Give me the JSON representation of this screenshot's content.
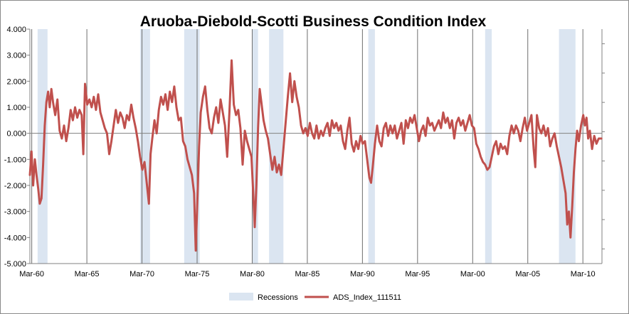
{
  "chart_data": {
    "type": "line",
    "title": "Aruoba-Diebold-Scotti Business Condition Index",
    "xlabel": "",
    "ylabel": "",
    "x_range": [
      1960.0,
      2011.9
    ],
    "ylim": [
      -5,
      4
    ],
    "y_ticks": [
      "4.000",
      "3.000",
      "2.000",
      "1.000",
      "0.000",
      "-1.000",
      "-2.000",
      "-3.000",
      "-4.000",
      "-5.000"
    ],
    "x_ticks": [
      {
        "label": "Mar-60",
        "x": 1960.17
      },
      {
        "label": "Mar-65",
        "x": 1965.17
      },
      {
        "label": "Mar-70",
        "x": 1970.17
      },
      {
        "label": "Mar-75",
        "x": 1975.17
      },
      {
        "label": "Mar-80",
        "x": 1980.17
      },
      {
        "label": "Mar-85",
        "x": 1985.17
      },
      {
        "label": "Mar-90",
        "x": 1990.17
      },
      {
        "label": "Mar-95",
        "x": 1995.17
      },
      {
        "label": "Mar-00",
        "x": 2000.17
      },
      {
        "label": "Mar-05",
        "x": 2005.17
      },
      {
        "label": "Mar-10",
        "x": 2010.17
      }
    ],
    "grid": "vertical",
    "legend_position": "bottom",
    "recession_color": "#dbe5f1",
    "line_color": "#c0504d",
    "series": [
      {
        "name": "Recessions",
        "type": "band",
        "periods": [
          [
            1960.7,
            1961.6
          ],
          [
            1970.0,
            1970.9
          ],
          [
            1974.0,
            1975.4
          ],
          [
            1980.2,
            1980.7
          ],
          [
            1981.7,
            1983.0
          ],
          [
            1990.7,
            1991.3
          ],
          [
            2001.3,
            2001.9
          ],
          [
            2008.0,
            2009.5
          ]
        ]
      },
      {
        "name": "ADS_Index_111511",
        "type": "line",
        "points": [
          [
            1960.0,
            -1.6
          ],
          [
            1960.15,
            -0.7
          ],
          [
            1960.3,
            -2.0
          ],
          [
            1960.45,
            -1.0
          ],
          [
            1960.6,
            -1.6
          ],
          [
            1960.75,
            -2.1
          ],
          [
            1960.9,
            -2.7
          ],
          [
            1961.05,
            -2.5
          ],
          [
            1961.2,
            -1.2
          ],
          [
            1961.35,
            0.3
          ],
          [
            1961.5,
            1.2
          ],
          [
            1961.65,
            1.6
          ],
          [
            1961.8,
            1.0
          ],
          [
            1961.95,
            1.7
          ],
          [
            1962.1,
            1.2
          ],
          [
            1962.3,
            0.7
          ],
          [
            1962.5,
            1.3
          ],
          [
            1962.7,
            0.1
          ],
          [
            1962.9,
            -0.2
          ],
          [
            1963.1,
            0.3
          ],
          [
            1963.3,
            -0.3
          ],
          [
            1963.5,
            0.2
          ],
          [
            1963.7,
            0.9
          ],
          [
            1963.9,
            0.5
          ],
          [
            1964.1,
            1.0
          ],
          [
            1964.3,
            0.6
          ],
          [
            1964.5,
            0.9
          ],
          [
            1964.7,
            0.7
          ],
          [
            1964.85,
            -0.8
          ],
          [
            1965.0,
            1.9
          ],
          [
            1965.2,
            1.1
          ],
          [
            1965.4,
            1.3
          ],
          [
            1965.6,
            1.0
          ],
          [
            1965.8,
            1.4
          ],
          [
            1966.0,
            0.9
          ],
          [
            1966.2,
            1.5
          ],
          [
            1966.4,
            0.8
          ],
          [
            1966.6,
            0.5
          ],
          [
            1966.8,
            0.2
          ],
          [
            1967.0,
            0.0
          ],
          [
            1967.2,
            -0.8
          ],
          [
            1967.4,
            -0.3
          ],
          [
            1967.6,
            0.3
          ],
          [
            1967.8,
            0.9
          ],
          [
            1968.0,
            0.4
          ],
          [
            1968.2,
            0.8
          ],
          [
            1968.4,
            0.6
          ],
          [
            1968.6,
            0.2
          ],
          [
            1968.8,
            0.7
          ],
          [
            1969.0,
            0.5
          ],
          [
            1969.2,
            1.1
          ],
          [
            1969.4,
            0.6
          ],
          [
            1969.6,
            0.2
          ],
          [
            1969.8,
            -0.3
          ],
          [
            1970.0,
            -0.9
          ],
          [
            1970.2,
            -1.4
          ],
          [
            1970.4,
            -1.1
          ],
          [
            1970.6,
            -1.9
          ],
          [
            1970.8,
            -2.7
          ],
          [
            1970.95,
            -0.8
          ],
          [
            1971.1,
            -0.2
          ],
          [
            1971.3,
            0.5
          ],
          [
            1971.5,
            0.0
          ],
          [
            1971.7,
            0.9
          ],
          [
            1971.9,
            1.4
          ],
          [
            1972.1,
            1.1
          ],
          [
            1972.3,
            1.5
          ],
          [
            1972.5,
            0.9
          ],
          [
            1972.7,
            1.6
          ],
          [
            1972.9,
            1.2
          ],
          [
            1973.1,
            1.8
          ],
          [
            1973.3,
            1.0
          ],
          [
            1973.5,
            0.5
          ],
          [
            1973.7,
            0.6
          ],
          [
            1973.9,
            -0.3
          ],
          [
            1974.1,
            -0.5
          ],
          [
            1974.3,
            -1.0
          ],
          [
            1974.5,
            -1.3
          ],
          [
            1974.7,
            -1.6
          ],
          [
            1974.9,
            -2.3
          ],
          [
            1975.05,
            -4.5
          ],
          [
            1975.2,
            -2.5
          ],
          [
            1975.35,
            -0.5
          ],
          [
            1975.5,
            0.8
          ],
          [
            1975.7,
            1.4
          ],
          [
            1975.9,
            1.8
          ],
          [
            1976.1,
            0.9
          ],
          [
            1976.3,
            0.2
          ],
          [
            1976.5,
            0.0
          ],
          [
            1976.7,
            0.6
          ],
          [
            1976.9,
            1.0
          ],
          [
            1977.1,
            0.4
          ],
          [
            1977.3,
            1.3
          ],
          [
            1977.5,
            0.8
          ],
          [
            1977.7,
            0.3
          ],
          [
            1977.9,
            -0.9
          ],
          [
            1978.1,
            0.8
          ],
          [
            1978.3,
            2.8
          ],
          [
            1978.5,
            1.1
          ],
          [
            1978.7,
            0.7
          ],
          [
            1978.9,
            0.9
          ],
          [
            1979.1,
            0.2
          ],
          [
            1979.3,
            -1.2
          ],
          [
            1979.5,
            0.1
          ],
          [
            1979.7,
            -0.3
          ],
          [
            1979.9,
            -0.6
          ],
          [
            1980.1,
            -0.9
          ],
          [
            1980.25,
            -2.2
          ],
          [
            1980.4,
            -3.6
          ],
          [
            1980.55,
            -2.0
          ],
          [
            1980.7,
            0.2
          ],
          [
            1980.85,
            1.7
          ],
          [
            1981.0,
            1.2
          ],
          [
            1981.2,
            0.5
          ],
          [
            1981.4,
            0.1
          ],
          [
            1981.6,
            -0.2
          ],
          [
            1981.8,
            -0.8
          ],
          [
            1982.0,
            -1.4
          ],
          [
            1982.2,
            -0.9
          ],
          [
            1982.4,
            -1.5
          ],
          [
            1982.6,
            -1.2
          ],
          [
            1982.8,
            -1.6
          ],
          [
            1983.0,
            -0.6
          ],
          [
            1983.2,
            0.4
          ],
          [
            1983.4,
            1.4
          ],
          [
            1983.6,
            2.3
          ],
          [
            1983.8,
            1.2
          ],
          [
            1984.0,
            2.0
          ],
          [
            1984.2,
            1.4
          ],
          [
            1984.4,
            1.0
          ],
          [
            1984.6,
            0.3
          ],
          [
            1984.8,
            0.0
          ],
          [
            1985.0,
            0.2
          ],
          [
            1985.2,
            -0.1
          ],
          [
            1985.4,
            0.4
          ],
          [
            1985.6,
            0.0
          ],
          [
            1985.8,
            -0.2
          ],
          [
            1986.0,
            0.3
          ],
          [
            1986.2,
            -0.2
          ],
          [
            1986.4,
            0.1
          ],
          [
            1986.6,
            -0.1
          ],
          [
            1986.8,
            0.2
          ],
          [
            1987.0,
            0.4
          ],
          [
            1987.2,
            -0.1
          ],
          [
            1987.4,
            0.5
          ],
          [
            1987.6,
            0.2
          ],
          [
            1987.8,
            0.4
          ],
          [
            1988.0,
            0.1
          ],
          [
            1988.2,
            0.3
          ],
          [
            1988.4,
            -0.3
          ],
          [
            1988.6,
            -0.6
          ],
          [
            1988.8,
            0.1
          ],
          [
            1989.0,
            0.6
          ],
          [
            1989.2,
            -0.4
          ],
          [
            1989.4,
            -0.7
          ],
          [
            1989.6,
            -0.3
          ],
          [
            1989.8,
            -0.6
          ],
          [
            1990.0,
            -0.1
          ],
          [
            1990.2,
            -0.4
          ],
          [
            1990.4,
            -0.3
          ],
          [
            1990.6,
            -1.0
          ],
          [
            1990.8,
            -1.7
          ],
          [
            1990.95,
            -1.9
          ],
          [
            1991.1,
            -1.3
          ],
          [
            1991.3,
            -0.4
          ],
          [
            1991.5,
            0.3
          ],
          [
            1991.7,
            -0.3
          ],
          [
            1991.9,
            -0.5
          ],
          [
            1992.1,
            0.2
          ],
          [
            1992.3,
            0.4
          ],
          [
            1992.5,
            -0.1
          ],
          [
            1992.7,
            0.3
          ],
          [
            1992.9,
            0.0
          ],
          [
            1993.1,
            0.3
          ],
          [
            1993.3,
            -0.2
          ],
          [
            1993.5,
            0.1
          ],
          [
            1993.7,
            0.4
          ],
          [
            1993.9,
            -0.4
          ],
          [
            1994.1,
            0.5
          ],
          [
            1994.3,
            0.2
          ],
          [
            1994.5,
            0.6
          ],
          [
            1994.7,
            0.4
          ],
          [
            1994.9,
            0.7
          ],
          [
            1995.1,
            0.2
          ],
          [
            1995.3,
            -0.3
          ],
          [
            1995.5,
            0.1
          ],
          [
            1995.7,
            0.3
          ],
          [
            1995.9,
            -0.1
          ],
          [
            1996.1,
            0.6
          ],
          [
            1996.3,
            0.3
          ],
          [
            1996.5,
            0.4
          ],
          [
            1996.7,
            0.1
          ],
          [
            1996.9,
            0.3
          ],
          [
            1997.1,
            0.5
          ],
          [
            1997.3,
            0.2
          ],
          [
            1997.5,
            0.8
          ],
          [
            1997.7,
            0.4
          ],
          [
            1997.9,
            0.6
          ],
          [
            1998.1,
            0.2
          ],
          [
            1998.3,
            0.5
          ],
          [
            1998.5,
            -0.2
          ],
          [
            1998.7,
            0.4
          ],
          [
            1998.9,
            0.6
          ],
          [
            1999.1,
            0.3
          ],
          [
            1999.3,
            0.5
          ],
          [
            1999.5,
            0.1
          ],
          [
            1999.7,
            0.4
          ],
          [
            1999.9,
            0.7
          ],
          [
            2000.1,
            0.3
          ],
          [
            2000.3,
            0.2
          ],
          [
            2000.5,
            -0.4
          ],
          [
            2000.7,
            -0.6
          ],
          [
            2000.9,
            -0.9
          ],
          [
            2001.1,
            -1.1
          ],
          [
            2001.3,
            -1.2
          ],
          [
            2001.5,
            -1.4
          ],
          [
            2001.7,
            -1.3
          ],
          [
            2001.9,
            -0.9
          ],
          [
            2002.1,
            -0.5
          ],
          [
            2002.3,
            -0.3
          ],
          [
            2002.5,
            -0.8
          ],
          [
            2002.7,
            -0.4
          ],
          [
            2002.9,
            -0.6
          ],
          [
            2003.1,
            -0.5
          ],
          [
            2003.3,
            -0.8
          ],
          [
            2003.5,
            -0.1
          ],
          [
            2003.7,
            0.3
          ],
          [
            2003.9,
            0.0
          ],
          [
            2004.1,
            0.3
          ],
          [
            2004.3,
            0.1
          ],
          [
            2004.5,
            -0.3
          ],
          [
            2004.7,
            0.2
          ],
          [
            2004.9,
            0.6
          ],
          [
            2005.1,
            0.1
          ],
          [
            2005.3,
            0.4
          ],
          [
            2005.5,
            0.7
          ],
          [
            2005.7,
            -0.6
          ],
          [
            2005.85,
            -1.3
          ],
          [
            2006.0,
            0.7
          ],
          [
            2006.2,
            0.2
          ],
          [
            2006.4,
            0.0
          ],
          [
            2006.6,
            0.3
          ],
          [
            2006.8,
            -0.1
          ],
          [
            2007.0,
            0.2
          ],
          [
            2007.2,
            -0.5
          ],
          [
            2007.4,
            -0.2
          ],
          [
            2007.6,
            0.0
          ],
          [
            2007.8,
            -0.5
          ],
          [
            2008.0,
            -0.9
          ],
          [
            2008.2,
            -1.3
          ],
          [
            2008.4,
            -1.8
          ],
          [
            2008.6,
            -2.3
          ],
          [
            2008.75,
            -3.5
          ],
          [
            2008.9,
            -3.0
          ],
          [
            2009.05,
            -4.0
          ],
          [
            2009.2,
            -2.8
          ],
          [
            2009.35,
            -1.5
          ],
          [
            2009.5,
            -0.6
          ],
          [
            2009.65,
            0.1
          ],
          [
            2009.8,
            -0.3
          ],
          [
            2010.0,
            0.3
          ],
          [
            2010.2,
            0.7
          ],
          [
            2010.35,
            0.3
          ],
          [
            2010.5,
            0.6
          ],
          [
            2010.65,
            -0.2
          ],
          [
            2010.8,
            0.1
          ],
          [
            2011.0,
            -0.6
          ],
          [
            2011.2,
            -0.1
          ],
          [
            2011.4,
            -0.4
          ],
          [
            2011.6,
            -0.2
          ],
          [
            2011.85,
            -0.2
          ]
        ]
      }
    ]
  }
}
